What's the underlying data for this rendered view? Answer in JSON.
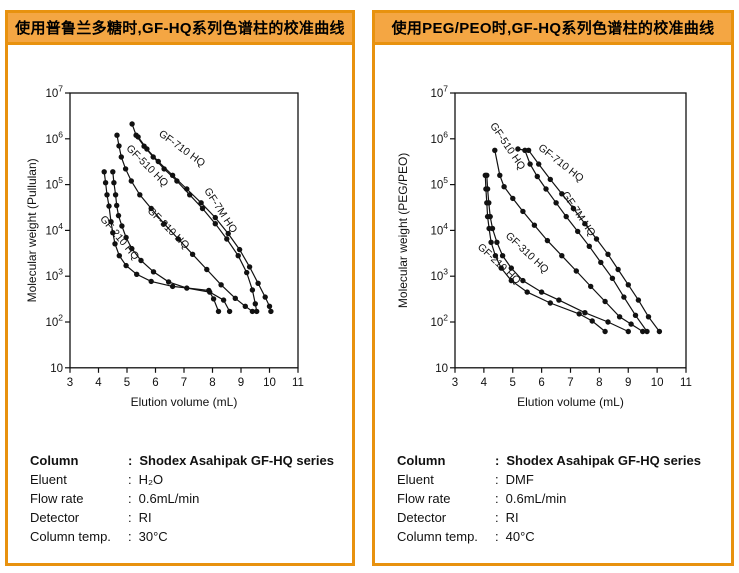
{
  "colon": ":",
  "colors": {
    "panel_border": "#E8920F",
    "header_bg": "#F4A643",
    "curve": "#111111",
    "text": "#000000"
  },
  "panels": [
    {
      "title": "使用普鲁兰多糖时,GF-HQ系列色谱柱的校准曲线",
      "specs": [
        {
          "label": "Column",
          "value": "Shodex Asahipak GF-HQ series",
          "bold": true
        },
        {
          "label": "Eluent",
          "value": "H₂O",
          "bold": false
        },
        {
          "label": "Flow rate",
          "value": "0.6mL/min",
          "bold": false
        },
        {
          "label": "Detector",
          "value": "RI",
          "bold": false
        },
        {
          "label": "Column temp.",
          "value": "30°C",
          "bold": false
        }
      ]
    },
    {
      "title": "使用PEG/PEO时,GF-HQ系列色谱柱的校准曲线",
      "specs": [
        {
          "label": "Column",
          "value": "Shodex Asahipak GF-HQ series",
          "bold": true
        },
        {
          "label": "Eluent",
          "value": "DMF",
          "bold": false
        },
        {
          "label": "Flow rate",
          "value": "0.6mL/min",
          "bold": false
        },
        {
          "label": "Detector",
          "value": "RI",
          "bold": false
        },
        {
          "label": "Column temp.",
          "value": "40°C",
          "bold": false
        }
      ]
    }
  ],
  "chart_data": [
    {
      "type": "line",
      "title": "使用普鲁兰多糖时,GF-HQ系列色谱柱的校准曲线",
      "xlabel": "Elution volume (mL)",
      "ylabel": "Molecular weight (Pullulan)",
      "xlim": [
        3,
        11
      ],
      "x_ticks": [
        3,
        4,
        5,
        6,
        7,
        8,
        9,
        10,
        11
      ],
      "y_scale": "log10",
      "y_log_range": [
        1,
        7
      ],
      "y_tick_exponents": [
        1,
        2,
        3,
        4,
        5,
        6,
        7
      ],
      "grid": false,
      "legend": "inline-curve-labels",
      "series": [
        {
          "name": "GF-210 HQ",
          "label_at": [
            4.65,
            6200
          ],
          "label_angle": 50,
          "points": [
            [
              4.2,
              190000
            ],
            [
              4.25,
              110000
            ],
            [
              4.3,
              60000
            ],
            [
              4.37,
              34000
            ],
            [
              4.44,
              15500
            ],
            [
              4.5,
              8900
            ],
            [
              4.58,
              5100
            ],
            [
              4.73,
              2800
            ],
            [
              4.97,
              1700
            ],
            [
              5.34,
              1100
            ],
            [
              5.85,
              770
            ],
            [
              6.6,
              600
            ],
            [
              7.87,
              490
            ],
            [
              8.04,
              320
            ],
            [
              8.21,
              170
            ]
          ]
        },
        {
          "name": "GF-310 HQ",
          "label_at": [
            6.37,
            10000
          ],
          "label_angle": 45,
          "points": [
            [
              4.5,
              190000
            ],
            [
              4.54,
              110000
            ],
            [
              4.6,
              60000
            ],
            [
              4.64,
              35000
            ],
            [
              4.7,
              21000
            ],
            [
              4.82,
              12500
            ],
            [
              4.97,
              7000
            ],
            [
              5.17,
              4000
            ],
            [
              5.49,
              2200
            ],
            [
              5.93,
              1250
            ],
            [
              6.46,
              750
            ],
            [
              7.1,
              550
            ],
            [
              7.9,
              450
            ],
            [
              8.39,
              300
            ],
            [
              8.6,
              170
            ]
          ]
        },
        {
          "name": "GF-510 HQ",
          "label_at": [
            5.63,
            230000
          ],
          "label_angle": 45,
          "points": [
            [
              4.65,
              1200000
            ],
            [
              4.72,
              700000
            ],
            [
              4.8,
              400000
            ],
            [
              4.95,
              220000
            ],
            [
              5.15,
              120000
            ],
            [
              5.45,
              60000
            ],
            [
              5.85,
              30000
            ],
            [
              6.3,
              14000
            ],
            [
              6.8,
              6500
            ],
            [
              7.3,
              3000
            ],
            [
              7.8,
              1400
            ],
            [
              8.3,
              650
            ],
            [
              8.8,
              330
            ],
            [
              9.15,
              220
            ],
            [
              9.4,
              170
            ]
          ]
        },
        {
          "name": "GF-710 HQ",
          "label_at": [
            6.86,
            540000
          ],
          "label_angle": 36,
          "points": [
            [
              5.18,
              2100000
            ],
            [
              5.32,
              1200000
            ],
            [
              5.6,
              690000
            ],
            [
              5.92,
              400000
            ],
            [
              6.3,
              220000
            ],
            [
              6.75,
              120000
            ],
            [
              7.2,
              60000
            ],
            [
              7.65,
              30000
            ],
            [
              8.1,
              14000
            ],
            [
              8.5,
              6500
            ],
            [
              8.9,
              2800
            ],
            [
              9.2,
              1200
            ],
            [
              9.4,
              500
            ],
            [
              9.5,
              250
            ],
            [
              9.55,
              170
            ]
          ]
        },
        {
          "name": "GF-7M HQ",
          "label_at": [
            8.19,
            25000
          ],
          "label_angle": 57,
          "points": [
            [
              5.39,
              1100000
            ],
            [
              5.7,
              600000
            ],
            [
              6.1,
              320000
            ],
            [
              6.6,
              160000
            ],
            [
              7.1,
              80000
            ],
            [
              7.6,
              40000
            ],
            [
              8.1,
              19000
            ],
            [
              8.55,
              8500
            ],
            [
              8.95,
              3800
            ],
            [
              9.3,
              1600
            ],
            [
              9.6,
              700
            ],
            [
              9.85,
              350
            ],
            [
              10.0,
              220
            ],
            [
              10.05,
              170
            ]
          ]
        }
      ]
    },
    {
      "type": "line",
      "title": "使用PEG/PEO时,GF-HQ系列色谱柱的校准曲线",
      "xlabel": "Elution volume (mL)",
      "ylabel": "Molecular weight (PEG/PEO)",
      "xlim": [
        3,
        11
      ],
      "x_ticks": [
        3,
        4,
        5,
        6,
        7,
        8,
        9,
        10,
        11
      ],
      "y_scale": "log10",
      "y_log_range": [
        1,
        7
      ],
      "y_tick_exponents": [
        1,
        2,
        3,
        4,
        5,
        6,
        7
      ],
      "grid": false,
      "legend": "inline-curve-labels",
      "series": [
        {
          "name": "GF-210 HQ",
          "label_at": [
            4.45,
            1650
          ],
          "label_angle": 43,
          "points": [
            [
              4.05,
              160000
            ],
            [
              4.07,
              80000
            ],
            [
              4.1,
              40000
            ],
            [
              4.13,
              20000
            ],
            [
              4.18,
              11000
            ],
            [
              4.25,
              5500
            ],
            [
              4.4,
              2800
            ],
            [
              4.6,
              1500
            ],
            [
              4.95,
              800
            ],
            [
              5.5,
              450
            ],
            [
              6.3,
              260
            ],
            [
              7.3,
              150
            ],
            [
              7.75,
              105
            ],
            [
              8.2,
              62
            ]
          ]
        },
        {
          "name": "GF-310 HQ",
          "label_at": [
            5.42,
            2900
          ],
          "label_angle": 43,
          "points": [
            [
              4.1,
              160000
            ],
            [
              4.13,
              80000
            ],
            [
              4.17,
              40000
            ],
            [
              4.22,
              20000
            ],
            [
              4.3,
              11000
            ],
            [
              4.45,
              5500
            ],
            [
              4.65,
              2800
            ],
            [
              4.95,
              1500
            ],
            [
              5.35,
              800
            ],
            [
              6.0,
              450
            ],
            [
              6.6,
              300
            ],
            [
              7.5,
              160
            ],
            [
              8.3,
              100
            ],
            [
              9.0,
              62
            ]
          ]
        },
        {
          "name": "GF-510 HQ",
          "label_at": [
            4.73,
            630000
          ],
          "label_angle": 56,
          "points": [
            [
              4.38,
              560000
            ],
            [
              4.55,
              160000
            ],
            [
              4.7,
              90000
            ],
            [
              5.0,
              50000
            ],
            [
              5.35,
              26000
            ],
            [
              5.75,
              13000
            ],
            [
              6.2,
              6000
            ],
            [
              6.7,
              2800
            ],
            [
              7.2,
              1300
            ],
            [
              7.7,
              600
            ],
            [
              8.2,
              280
            ],
            [
              8.7,
              130
            ],
            [
              9.1,
              90
            ],
            [
              9.5,
              62
            ]
          ]
        },
        {
          "name": "GF-710 HQ",
          "label_at": [
            6.6,
            260000
          ],
          "label_angle": 38,
          "points": [
            [
              5.18,
              600000
            ],
            [
              5.42,
              560000
            ],
            [
              5.6,
              280000
            ],
            [
              5.85,
              150000
            ],
            [
              6.15,
              80000
            ],
            [
              6.5,
              40000
            ],
            [
              6.85,
              20000
            ],
            [
              7.25,
              9500
            ],
            [
              7.65,
              4500
            ],
            [
              8.05,
              2000
            ],
            [
              8.45,
              900
            ],
            [
              8.85,
              350
            ],
            [
              9.25,
              140
            ],
            [
              9.65,
              62
            ]
          ]
        },
        {
          "name": "GF-7M HQ",
          "label_at": [
            7.19,
            21000
          ],
          "label_angle": 56,
          "points": [
            [
              5.55,
              560000
            ],
            [
              5.9,
              280000
            ],
            [
              6.3,
              130000
            ],
            [
              6.7,
              63000
            ],
            [
              7.1,
              30000
            ],
            [
              7.5,
              14000
            ],
            [
              7.9,
              6500
            ],
            [
              8.3,
              3000
            ],
            [
              8.65,
              1400
            ],
            [
              9.0,
              650
            ],
            [
              9.35,
              300
            ],
            [
              9.7,
              130
            ],
            [
              10.08,
              62
            ]
          ]
        }
      ]
    }
  ]
}
